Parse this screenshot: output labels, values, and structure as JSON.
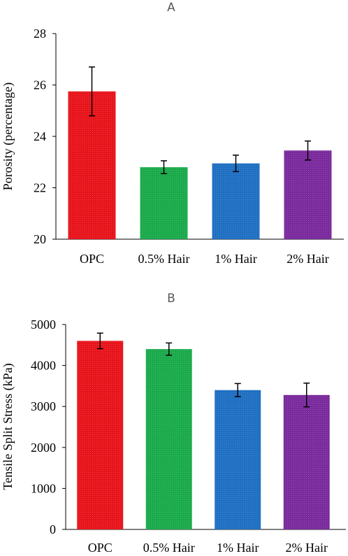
{
  "chart_data": [
    {
      "type": "bar",
      "panel_label": "A",
      "categories": [
        "OPC",
        "0.5% Hair",
        "1% Hair",
        "2% Hair"
      ],
      "values": [
        25.75,
        22.8,
        22.95,
        23.45
      ],
      "errors": [
        0.95,
        0.25,
        0.32,
        0.37
      ],
      "colors": [
        "#e8141b",
        "#1aaa4b",
        "#1f6fc2",
        "#7a2a9c"
      ],
      "ylabel": "Porosity (percentage)",
      "ylim": [
        20,
        28
      ],
      "yticks": [
        20,
        22,
        24,
        26,
        28
      ],
      "grid": false
    },
    {
      "type": "bar",
      "panel_label": "B",
      "categories": [
        "OPC",
        "0.5% Hair",
        "1% Hair",
        "2% Hair"
      ],
      "values": [
        4600,
        4400,
        3400,
        3280
      ],
      "errors": [
        190,
        150,
        160,
        290
      ],
      "colors": [
        "#e8141b",
        "#1aaa4b",
        "#1f6fc2",
        "#7a2a9c"
      ],
      "ylabel": "Tensile Split Stress (kPa)",
      "ylim": [
        0,
        5000
      ],
      "yticks": [
        0,
        1000,
        2000,
        3000,
        4000,
        5000
      ],
      "grid": false
    }
  ]
}
